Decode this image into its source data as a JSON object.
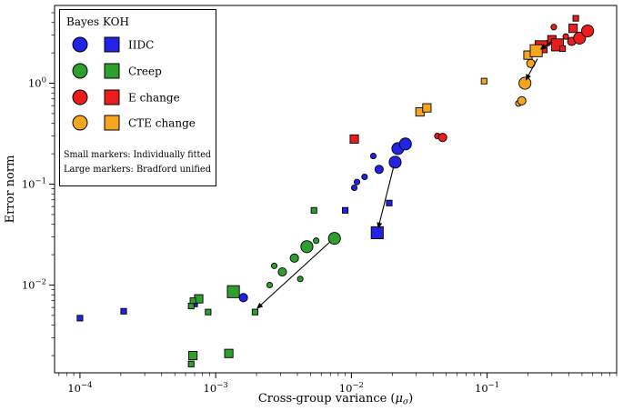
{
  "chart_data": {
    "type": "scatter",
    "x_scale": "log",
    "y_scale": "log",
    "xlabel": {
      "prefix": "Cross-group variance (",
      "symbol": "μ",
      "subscript": "σ",
      "suffix": ")"
    },
    "ylabel": "Error norm",
    "xlim": [
      6.5e-05,
      0.9
    ],
    "ylim": [
      0.00135,
      5.9
    ],
    "x_major_ticks": [
      -4,
      -3,
      -2,
      -1
    ],
    "y_major_ticks": [
      0,
      -1,
      -2
    ],
    "legend": {
      "columns": [
        "Bayes",
        "KOH"
      ],
      "entries": [
        {
          "label": "IIDC",
          "color": "#2323e5"
        },
        {
          "label": "Creep",
          "color": "#2e9e2e"
        },
        {
          "label": "E change",
          "color": "#ea1c1c"
        },
        {
          "label": "CTE change",
          "color": "#f6a51f"
        }
      ],
      "notes": [
        "Small markers: Individually fitted",
        "Large markers: Bradford unified"
      ]
    },
    "series": [
      {
        "group": "IIDC",
        "method": "Bayes",
        "marker": "circle",
        "color": "#2323e5",
        "points": [
          [
            0.0016,
            0.0075,
            "m"
          ],
          [
            0.0105,
            0.092,
            "s"
          ],
          [
            0.011,
            0.105,
            "s"
          ],
          [
            0.0125,
            0.118,
            "s"
          ],
          [
            0.0145,
            0.19,
            "s"
          ],
          [
            0.016,
            0.14,
            "m"
          ],
          [
            0.021,
            0.165,
            "l"
          ],
          [
            0.022,
            0.225,
            "l"
          ],
          [
            0.025,
            0.25,
            "l"
          ]
        ]
      },
      {
        "group": "IIDC",
        "method": "KOH",
        "marker": "square",
        "color": "#2323e5",
        "points": [
          [
            0.0001,
            0.0047,
            "s"
          ],
          [
            0.00021,
            0.0055,
            "s"
          ],
          [
            0.0007,
            0.0065,
            "s"
          ],
          [
            0.009,
            0.055,
            "s"
          ],
          [
            0.019,
            0.065,
            "s"
          ],
          [
            0.0155,
            0.033,
            "l"
          ]
        ]
      },
      {
        "group": "Creep",
        "method": "Bayes",
        "marker": "circle",
        "color": "#2e9e2e",
        "points": [
          [
            0.0025,
            0.01,
            "s"
          ],
          [
            0.0027,
            0.0155,
            "s"
          ],
          [
            0.0031,
            0.0135,
            "m"
          ],
          [
            0.0038,
            0.0185,
            "m"
          ],
          [
            0.0042,
            0.0115,
            "s"
          ],
          [
            0.0047,
            0.024,
            "l"
          ],
          [
            0.0055,
            0.0275,
            "s"
          ],
          [
            0.0075,
            0.029,
            "l"
          ]
        ]
      },
      {
        "group": "Creep",
        "method": "KOH",
        "marker": "square",
        "color": "#2e9e2e",
        "points": [
          [
            0.00066,
            0.0062,
            "s"
          ],
          [
            0.00075,
            0.0073,
            "m"
          ],
          [
            0.00088,
            0.0054,
            "s"
          ],
          [
            0.00068,
            0.007,
            "s"
          ],
          [
            0.00135,
            0.0086,
            "l"
          ],
          [
            0.00195,
            0.0054,
            "s"
          ],
          [
            0.00068,
            0.002,
            "m"
          ],
          [
            0.00125,
            0.0021,
            "m"
          ],
          [
            0.00066,
            0.00165,
            "s"
          ],
          [
            0.0053,
            0.055,
            "s"
          ]
        ]
      },
      {
        "group": "E change",
        "method": "Bayes",
        "marker": "circle",
        "color": "#ea1c1c",
        "points": [
          [
            0.043,
            0.3,
            "s"
          ],
          [
            0.047,
            0.29,
            "m"
          ],
          [
            0.28,
            2.5,
            "s"
          ],
          [
            0.31,
            3.6,
            "s"
          ],
          [
            0.38,
            2.9,
            "s"
          ],
          [
            0.42,
            2.6,
            "m"
          ],
          [
            0.48,
            2.8,
            "l"
          ],
          [
            0.55,
            3.3,
            "l"
          ]
        ]
      },
      {
        "group": "E change",
        "method": "KOH",
        "marker": "square",
        "color": "#ea1c1c",
        "points": [
          [
            0.0105,
            0.28,
            "m"
          ],
          [
            0.25,
            2.3,
            "l"
          ],
          [
            0.3,
            2.7,
            "m"
          ],
          [
            0.33,
            2.4,
            "l"
          ],
          [
            0.36,
            2.2,
            "s"
          ],
          [
            0.43,
            3.5,
            "m"
          ],
          [
            0.45,
            4.4,
            "s"
          ]
        ]
      },
      {
        "group": "CTE change",
        "method": "Bayes",
        "marker": "circle",
        "color": "#f6a51f",
        "points": [
          [
            0.17,
            0.63,
            "s"
          ],
          [
            0.18,
            0.67,
            "m"
          ],
          [
            0.19,
            1.0,
            "l"
          ],
          [
            0.21,
            1.57,
            "m"
          ]
        ]
      },
      {
        "group": "CTE change",
        "method": "KOH",
        "marker": "square",
        "color": "#f6a51f",
        "points": [
          [
            0.032,
            0.52,
            "m"
          ],
          [
            0.036,
            0.57,
            "m"
          ],
          [
            0.095,
            1.05,
            "s"
          ],
          [
            0.2,
            1.9,
            "m"
          ],
          [
            0.23,
            2.1,
            "l"
          ]
        ]
      }
    ],
    "arrows": [
      [
        0.007,
        0.027,
        0.002,
        0.0058
      ],
      [
        0.0205,
        0.15,
        0.0157,
        0.036
      ],
      [
        0.3,
        2.6,
        0.245,
        2.15
      ],
      [
        0.235,
        1.75,
        0.192,
        1.06
      ]
    ]
  }
}
